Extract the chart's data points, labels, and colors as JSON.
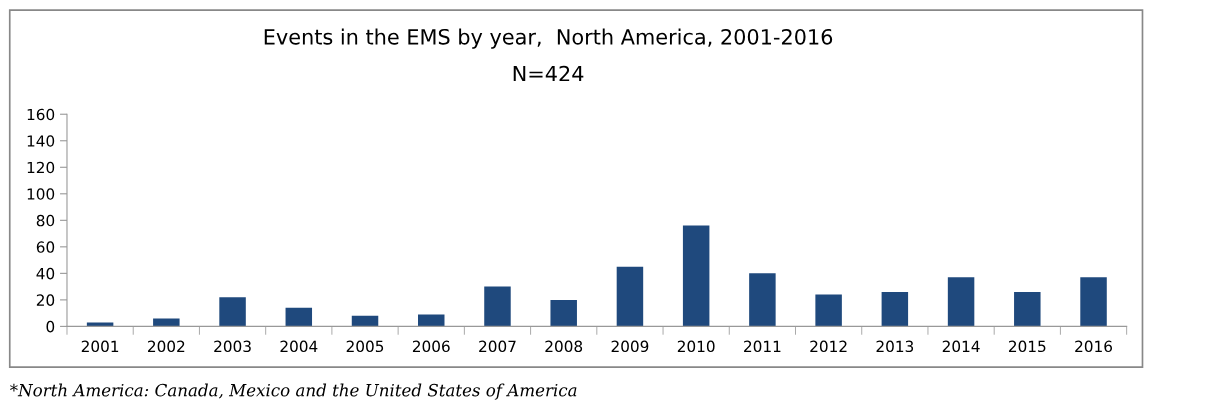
{
  "chart_data": {
    "type": "bar",
    "title": "Events in the EMS by year,  North America, 2001-2016",
    "subtitle": "N=424",
    "categories": [
      "2001",
      "2002",
      "2003",
      "2004",
      "2005",
      "2006",
      "2007",
      "2008",
      "2009",
      "2010",
      "2011",
      "2012",
      "2013",
      "2014",
      "2015",
      "2016"
    ],
    "values": [
      3,
      6,
      22,
      14,
      8,
      9,
      30,
      20,
      45,
      76,
      40,
      24,
      26,
      37,
      26,
      37
    ],
    "color": "#1f497d",
    "ylim": [
      0,
      160
    ],
    "yticks": [
      0,
      20,
      40,
      60,
      80,
      100,
      120,
      140,
      160
    ],
    "grid": false,
    "legend": false,
    "annotations": [
      "*North America: Canada, Mexico and the United States of America"
    ]
  }
}
